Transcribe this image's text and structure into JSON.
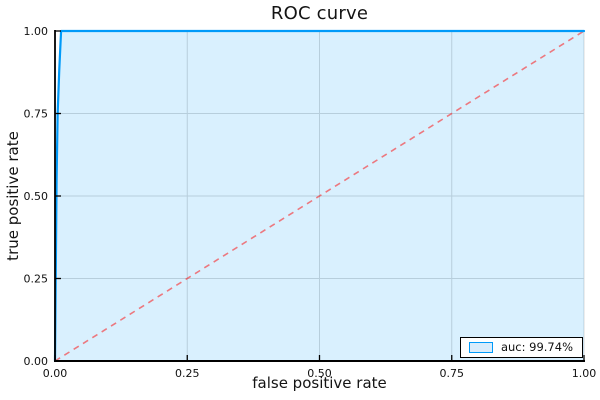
{
  "chart_data": {
    "type": "area",
    "title": "ROC curve",
    "xlabel": "false positive rate",
    "ylabel": "true positive rate",
    "xlim": [
      0,
      1
    ],
    "ylim": [
      0,
      1
    ],
    "grid": true,
    "grid_color": "#d8d8d8",
    "axis_color": "#000000",
    "background_color": "#ffffff",
    "xticks": {
      "values": [
        0,
        0.25,
        0.5,
        0.75,
        1
      ],
      "labels": [
        "0.00",
        "0.25",
        "0.50",
        "0.75",
        "1.00"
      ]
    },
    "yticks": {
      "values": [
        0,
        0.25,
        0.5,
        0.75,
        1
      ],
      "labels": [
        "0.00",
        "0.25",
        "0.50",
        "0.75",
        "1.00"
      ]
    },
    "series": [
      {
        "name": "roc-curve",
        "type": "area",
        "line_color": "#009af9",
        "fill_color": "#009af9",
        "fill_opacity": 0.15,
        "points": [
          [
            0,
            0
          ],
          [
            0.003,
            0.55
          ],
          [
            0.005,
            0.75
          ],
          [
            0.008,
            0.88
          ],
          [
            0.0115,
            1.0
          ],
          [
            1.0,
            1.0
          ]
        ]
      },
      {
        "name": "chance-diagonal",
        "type": "line",
        "style": "dashed",
        "line_color": "#ff0000",
        "line_opacity": 0.5,
        "points": [
          [
            0,
            0
          ],
          [
            1,
            1
          ]
        ]
      }
    ],
    "legend": {
      "position": "bottom-right",
      "entries": [
        {
          "label": "auc: 99.74%",
          "swatch_fill": "#d9ecfb",
          "swatch_border": "#009af9"
        }
      ]
    }
  }
}
